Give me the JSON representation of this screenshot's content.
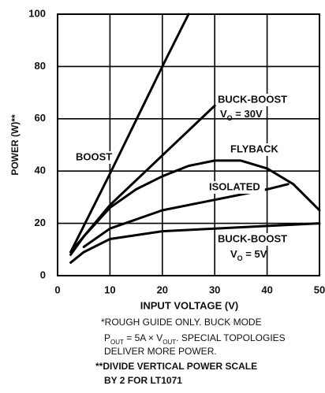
{
  "chart_data": {
    "type": "line",
    "x_label": "INPUT VOLTAGE (V)",
    "y_label": "POWER (W)**",
    "xlim": [
      0,
      50
    ],
    "xticks": [
      0,
      10,
      20,
      30,
      40,
      50
    ],
    "ylim": [
      0,
      100
    ],
    "yticks": [
      0,
      20,
      40,
      60,
      80,
      100
    ],
    "grid": true,
    "series": [
      {
        "name": "BOOST",
        "color": "#000000",
        "x": [
          2.5,
          10,
          20,
          25
        ],
        "values": [
          9,
          39,
          80,
          100
        ]
      },
      {
        "name": "BUCK-BOOST",
        "label_parts": [
          "V",
          "O",
          " = 30V"
        ],
        "color": "#000000",
        "x": [
          2.5,
          10,
          20,
          30
        ],
        "values": [
          9,
          27,
          46,
          65
        ]
      },
      {
        "name": "FLYBACK",
        "color": "#000000",
        "x": [
          2.5,
          5,
          10,
          15,
          20,
          25,
          30,
          35,
          40,
          45,
          50
        ],
        "values": [
          8,
          15,
          26,
          33,
          38,
          42,
          44,
          44,
          41,
          35,
          25
        ]
      },
      {
        "name": "ISOLATED",
        "color": "#000000",
        "x": [
          5,
          10,
          20,
          30,
          40,
          44
        ],
        "values": [
          11,
          18,
          25,
          29,
          33,
          35
        ]
      },
      {
        "name": "BUCK-BOOST",
        "label_parts": [
          "V",
          "O",
          " = 5V"
        ],
        "color": "#000000",
        "x": [
          2.5,
          5,
          10,
          20,
          30,
          40,
          50
        ],
        "values": [
          5,
          9,
          14,
          17,
          18,
          19,
          20
        ]
      }
    ],
    "footnotes": [
      "*ROUGH GUIDE ONLY. BUCK MODE",
      [
        "P",
        "OUT",
        " = 5A × V",
        "OUT",
        ". SPECIAL TOPOLOGIES"
      ],
      "DELIVER MORE POWER.",
      "**DIVIDE VERTICAL POWER SCALE",
      "BY 2 FOR LT1071"
    ]
  }
}
